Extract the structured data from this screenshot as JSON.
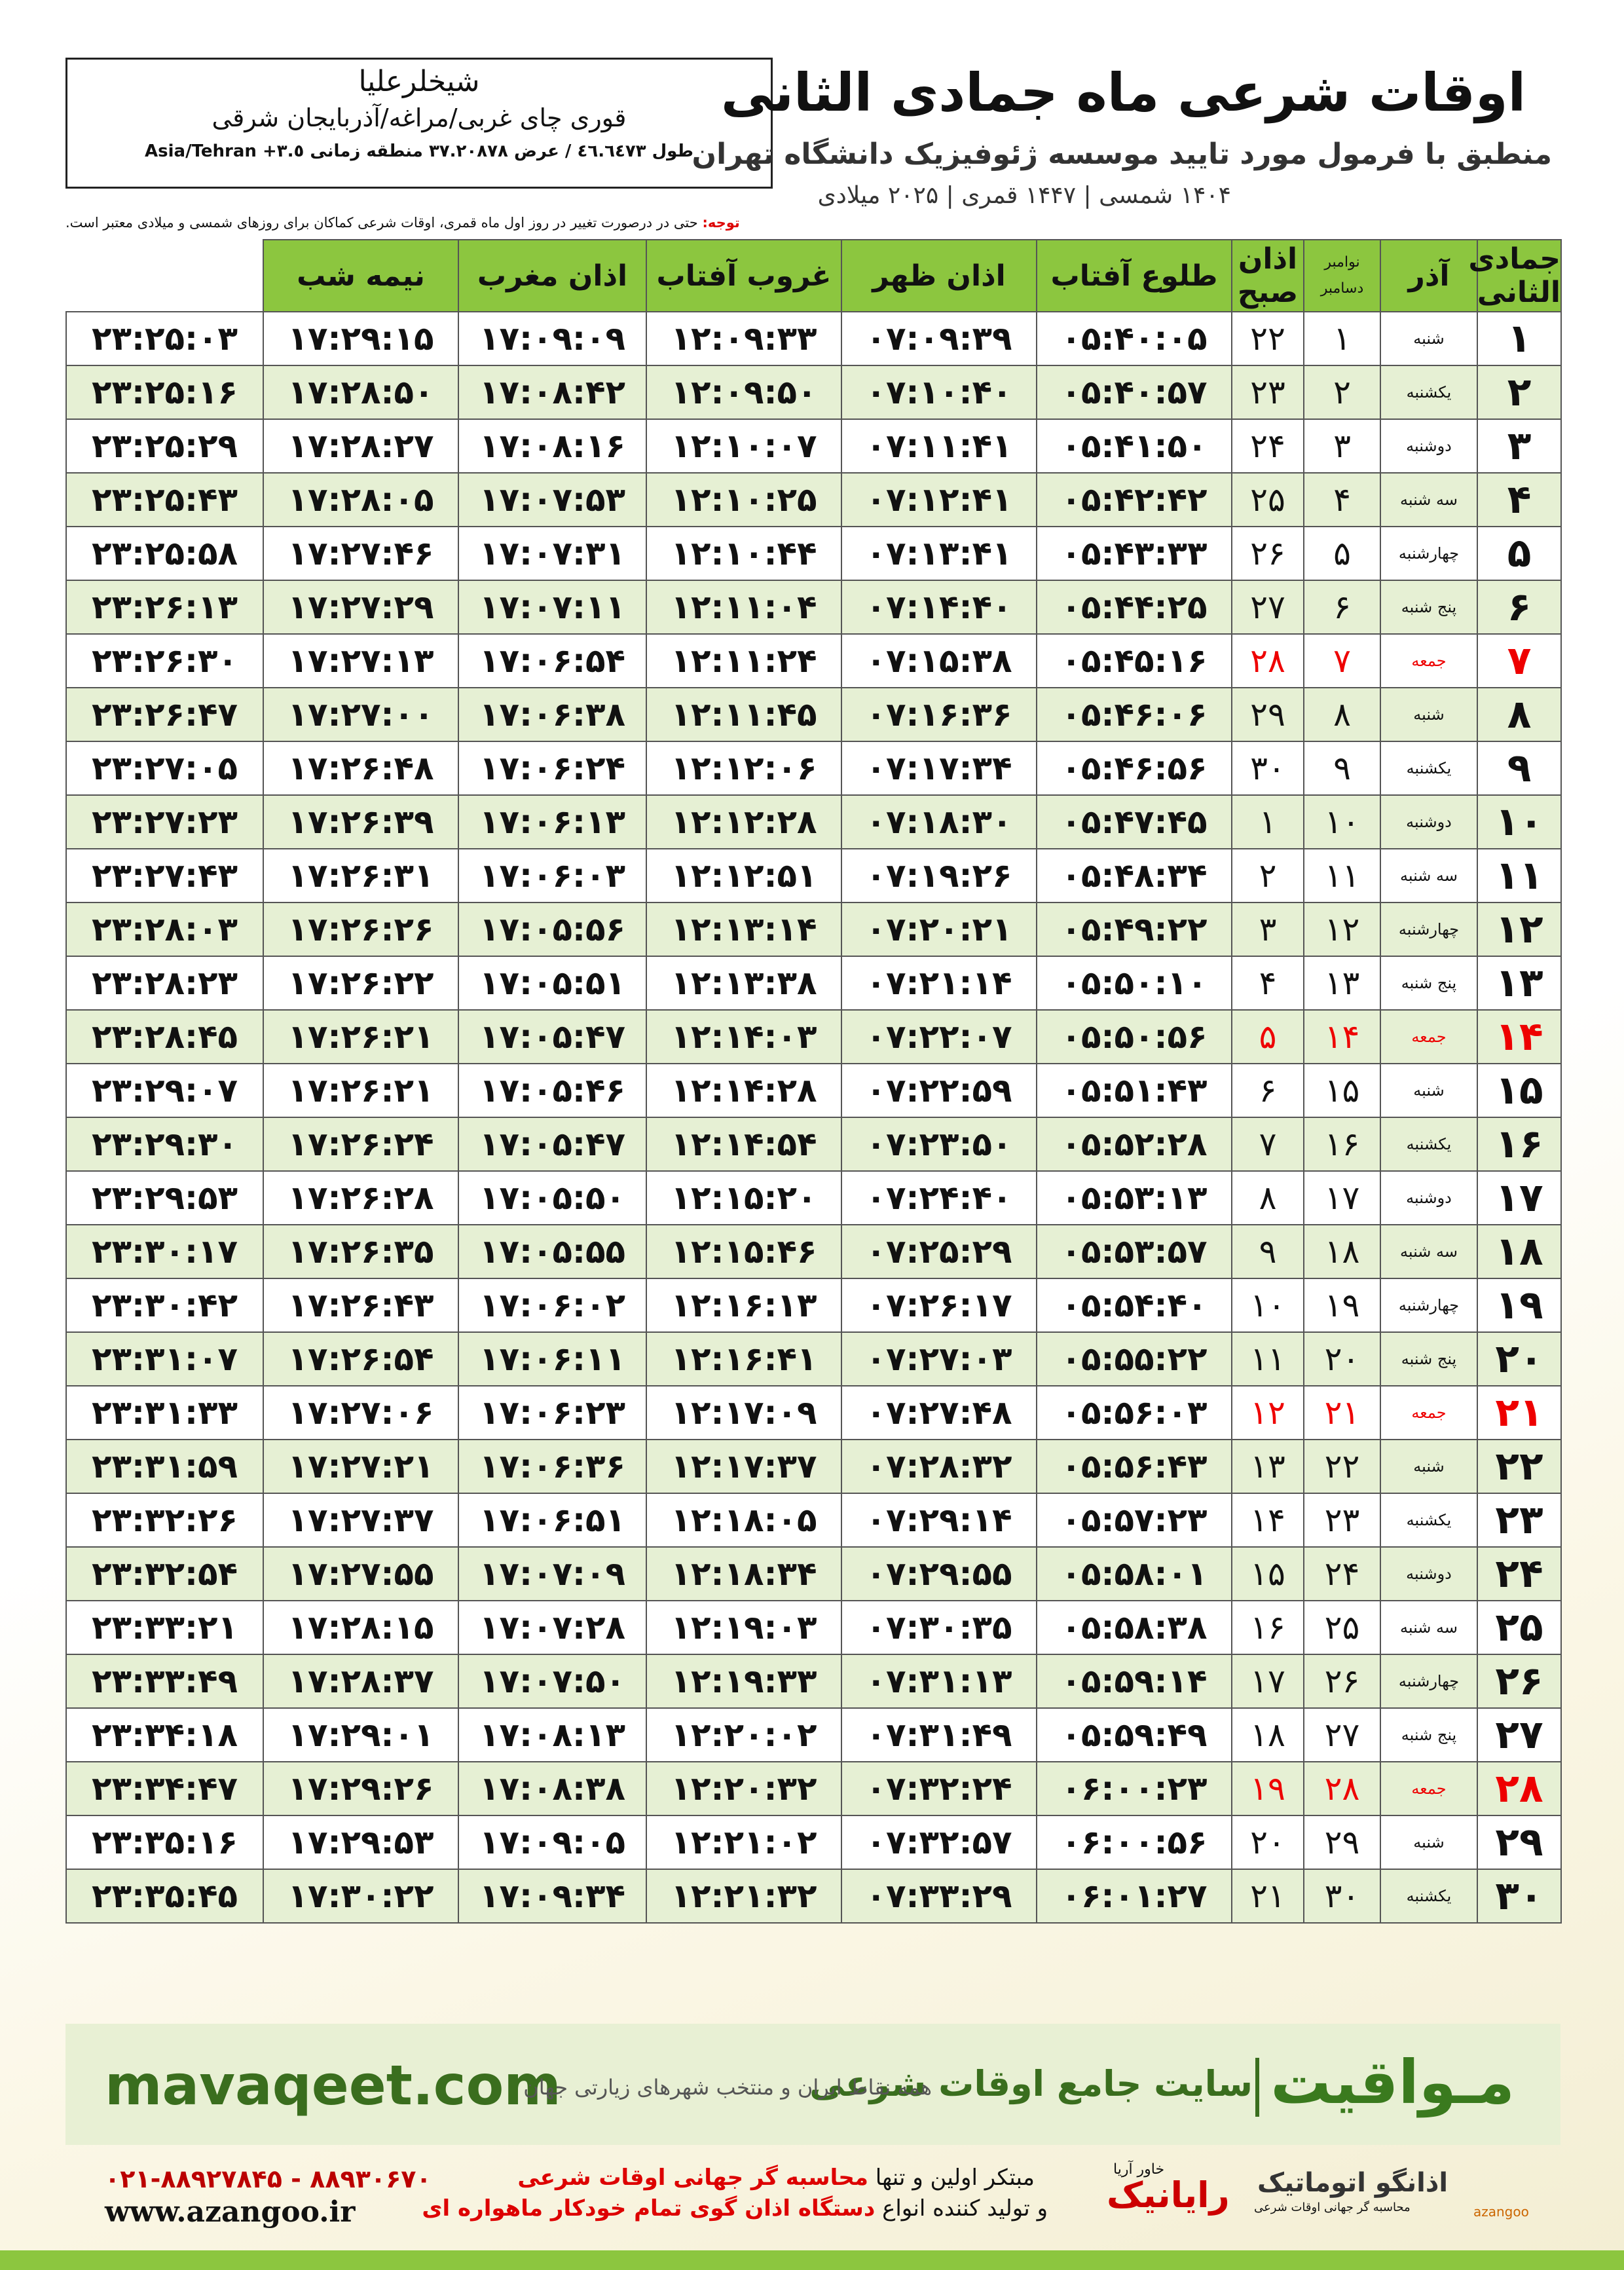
{
  "header": {
    "location": "شیخلرعلیا",
    "address": "قوری چای غربی/مراغه/آذربایجان شرقی",
    "coords": "طول ٤٦.٦٤٧٣ / عرض ٣٧.٢٠٨٧٨ منطقه زمانی ٣.٥+ Asia/Tehran",
    "title": "اوقات شرعی ماه جمادی الثانی",
    "subtitle": "منطبق با فرمول مورد تایید موسسه ژئوفیزیک دانشگاه تهران",
    "years": "۱۴۰۴ شمسی | ۱۴۴۷ قمری | ۲۰۲۵ میلادی"
  },
  "note": {
    "label": "توجه:",
    "text": "حتی در درصورت تغییر در روز اول ماه قمری، اوقات شرعی کماکان برای روزهای شمسی و میلادی معتبر است."
  },
  "table": {
    "columns": [
      "جمادی الثانی",
      "آذر",
      [
        "نوامبر",
        "دسامبر"
      ],
      "اذان صبح",
      "طلوع آفتاب",
      "اذان ظهر",
      "غروب آفتاب",
      "اذان مغرب",
      "نیمه شب"
    ],
    "rows": [
      [
        "۱",
        "شنبه",
        "۱",
        "۲۲",
        "۰۵:۴۰:۰۵",
        "۰۷:۰۹:۳۹",
        "۱۲:۰۹:۳۳",
        "۱۷:۰۹:۰۹",
        "۱۷:۲۹:۱۵",
        "۲۳:۲۵:۰۳"
      ],
      [
        "۲",
        "یکشنبه",
        "۲",
        "۲۳",
        "۰۵:۴۰:۵۷",
        "۰۷:۱۰:۴۰",
        "۱۲:۰۹:۵۰",
        "۱۷:۰۸:۴۲",
        "۱۷:۲۸:۵۰",
        "۲۳:۲۵:۱۶"
      ],
      [
        "۳",
        "دوشنبه",
        "۳",
        "۲۴",
        "۰۵:۴۱:۵۰",
        "۰۷:۱۱:۴۱",
        "۱۲:۱۰:۰۷",
        "۱۷:۰۸:۱۶",
        "۱۷:۲۸:۲۷",
        "۲۳:۲۵:۲۹"
      ],
      [
        "۴",
        "سه شنبه",
        "۴",
        "۲۵",
        "۰۵:۴۲:۴۲",
        "۰۷:۱۲:۴۱",
        "۱۲:۱۰:۲۵",
        "۱۷:۰۷:۵۳",
        "۱۷:۲۸:۰۵",
        "۲۳:۲۵:۴۳"
      ],
      [
        "۵",
        "چهارشنبه",
        "۵",
        "۲۶",
        "۰۵:۴۳:۳۳",
        "۰۷:۱۳:۴۱",
        "۱۲:۱۰:۴۴",
        "۱۷:۰۷:۳۱",
        "۱۷:۲۷:۴۶",
        "۲۳:۲۵:۵۸"
      ],
      [
        "۶",
        "پنج شنبه",
        "۶",
        "۲۷",
        "۰۵:۴۴:۲۵",
        "۰۷:۱۴:۴۰",
        "۱۲:۱۱:۰۴",
        "۱۷:۰۷:۱۱",
        "۱۷:۲۷:۲۹",
        "۲۳:۲۶:۱۳"
      ],
      [
        "۷",
        "جمعه",
        "۷",
        "۲۸",
        "۰۵:۴۵:۱۶",
        "۰۷:۱۵:۳۸",
        "۱۲:۱۱:۲۴",
        "۱۷:۰۶:۵۴",
        "۱۷:۲۷:۱۳",
        "۲۳:۲۶:۳۰"
      ],
      [
        "۸",
        "شنبه",
        "۸",
        "۲۹",
        "۰۵:۴۶:۰۶",
        "۰۷:۱۶:۳۶",
        "۱۲:۱۱:۴۵",
        "۱۷:۰۶:۳۸",
        "۱۷:۲۷:۰۰",
        "۲۳:۲۶:۴۷"
      ],
      [
        "۹",
        "یکشنبه",
        "۹",
        "۳۰",
        "۰۵:۴۶:۵۶",
        "۰۷:۱۷:۳۴",
        "۱۲:۱۲:۰۶",
        "۱۷:۰۶:۲۴",
        "۱۷:۲۶:۴۸",
        "۲۳:۲۷:۰۵"
      ],
      [
        "۱۰",
        "دوشنبه",
        "۱۰",
        "۱",
        "۰۵:۴۷:۴۵",
        "۰۷:۱۸:۳۰",
        "۱۲:۱۲:۲۸",
        "۱۷:۰۶:۱۳",
        "۱۷:۲۶:۳۹",
        "۲۳:۲۷:۲۳"
      ],
      [
        "۱۱",
        "سه شنبه",
        "۱۱",
        "۲",
        "۰۵:۴۸:۳۴",
        "۰۷:۱۹:۲۶",
        "۱۲:۱۲:۵۱",
        "۱۷:۰۶:۰۳",
        "۱۷:۲۶:۳۱",
        "۲۳:۲۷:۴۳"
      ],
      [
        "۱۲",
        "چهارشنبه",
        "۱۲",
        "۳",
        "۰۵:۴۹:۲۲",
        "۰۷:۲۰:۲۱",
        "۱۲:۱۳:۱۴",
        "۱۷:۰۵:۵۶",
        "۱۷:۲۶:۲۶",
        "۲۳:۲۸:۰۳"
      ],
      [
        "۱۳",
        "پنج شنبه",
        "۱۳",
        "۴",
        "۰۵:۵۰:۱۰",
        "۰۷:۲۱:۱۴",
        "۱۲:۱۳:۳۸",
        "۱۷:۰۵:۵۱",
        "۱۷:۲۶:۲۲",
        "۲۳:۲۸:۲۳"
      ],
      [
        "۱۴",
        "جمعه",
        "۱۴",
        "۵",
        "۰۵:۵۰:۵۶",
        "۰۷:۲۲:۰۷",
        "۱۲:۱۴:۰۳",
        "۱۷:۰۵:۴۷",
        "۱۷:۲۶:۲۱",
        "۲۳:۲۸:۴۵"
      ],
      [
        "۱۵",
        "شنبه",
        "۱۵",
        "۶",
        "۰۵:۵۱:۴۳",
        "۰۷:۲۲:۵۹",
        "۱۲:۱۴:۲۸",
        "۱۷:۰۵:۴۶",
        "۱۷:۲۶:۲۱",
        "۲۳:۲۹:۰۷"
      ],
      [
        "۱۶",
        "یکشنبه",
        "۱۶",
        "۷",
        "۰۵:۵۲:۲۸",
        "۰۷:۲۳:۵۰",
        "۱۲:۱۴:۵۴",
        "۱۷:۰۵:۴۷",
        "۱۷:۲۶:۲۴",
        "۲۳:۲۹:۳۰"
      ],
      [
        "۱۷",
        "دوشنبه",
        "۱۷",
        "۸",
        "۰۵:۵۳:۱۳",
        "۰۷:۲۴:۴۰",
        "۱۲:۱۵:۲۰",
        "۱۷:۰۵:۵۰",
        "۱۷:۲۶:۲۸",
        "۲۳:۲۹:۵۳"
      ],
      [
        "۱۸",
        "سه شنبه",
        "۱۸",
        "۹",
        "۰۵:۵۳:۵۷",
        "۰۷:۲۵:۲۹",
        "۱۲:۱۵:۴۶",
        "۱۷:۰۵:۵۵",
        "۱۷:۲۶:۳۵",
        "۲۳:۳۰:۱۷"
      ],
      [
        "۱۹",
        "چهارشنبه",
        "۱۹",
        "۱۰",
        "۰۵:۵۴:۴۰",
        "۰۷:۲۶:۱۷",
        "۱۲:۱۶:۱۳",
        "۱۷:۰۶:۰۲",
        "۱۷:۲۶:۴۳",
        "۲۳:۳۰:۴۲"
      ],
      [
        "۲۰",
        "پنج شنبه",
        "۲۰",
        "۱۱",
        "۰۵:۵۵:۲۲",
        "۰۷:۲۷:۰۳",
        "۱۲:۱۶:۴۱",
        "۱۷:۰۶:۱۱",
        "۱۷:۲۶:۵۴",
        "۲۳:۳۱:۰۷"
      ],
      [
        "۲۱",
        "جمعه",
        "۲۱",
        "۱۲",
        "۰۵:۵۶:۰۳",
        "۰۷:۲۷:۴۸",
        "۱۲:۱۷:۰۹",
        "۱۷:۰۶:۲۳",
        "۱۷:۲۷:۰۶",
        "۲۳:۳۱:۳۳"
      ],
      [
        "۲۲",
        "شنبه",
        "۲۲",
        "۱۳",
        "۰۵:۵۶:۴۳",
        "۰۷:۲۸:۳۲",
        "۱۲:۱۷:۳۷",
        "۱۷:۰۶:۳۶",
        "۱۷:۲۷:۲۱",
        "۲۳:۳۱:۵۹"
      ],
      [
        "۲۳",
        "یکشنبه",
        "۲۳",
        "۱۴",
        "۰۵:۵۷:۲۳",
        "۰۷:۲۹:۱۴",
        "۱۲:۱۸:۰۵",
        "۱۷:۰۶:۵۱",
        "۱۷:۲۷:۳۷",
        "۲۳:۳۲:۲۶"
      ],
      [
        "۲۴",
        "دوشنبه",
        "۲۴",
        "۱۵",
        "۰۵:۵۸:۰۱",
        "۰۷:۲۹:۵۵",
        "۱۲:۱۸:۳۴",
        "۱۷:۰۷:۰۹",
        "۱۷:۲۷:۵۵",
        "۲۳:۳۲:۵۴"
      ],
      [
        "۲۵",
        "سه شنبه",
        "۲۵",
        "۱۶",
        "۰۵:۵۸:۳۸",
        "۰۷:۳۰:۳۵",
        "۱۲:۱۹:۰۳",
        "۱۷:۰۷:۲۸",
        "۱۷:۲۸:۱۵",
        "۲۳:۳۳:۲۱"
      ],
      [
        "۲۶",
        "چهارشنبه",
        "۲۶",
        "۱۷",
        "۰۵:۵۹:۱۴",
        "۰۷:۳۱:۱۳",
        "۱۲:۱۹:۳۳",
        "۱۷:۰۷:۵۰",
        "۱۷:۲۸:۳۷",
        "۲۳:۳۳:۴۹"
      ],
      [
        "۲۷",
        "پنج شنبه",
        "۲۷",
        "۱۸",
        "۰۵:۵۹:۴۹",
        "۰۷:۳۱:۴۹",
        "۱۲:۲۰:۰۲",
        "۱۷:۰۸:۱۳",
        "۱۷:۲۹:۰۱",
        "۲۳:۳۴:۱۸"
      ],
      [
        "۲۸",
        "جمعه",
        "۲۸",
        "۱۹",
        "۰۶:۰۰:۲۳",
        "۰۷:۳۲:۲۴",
        "۱۲:۲۰:۳۲",
        "۱۷:۰۸:۳۸",
        "۱۷:۲۹:۲۶",
        "۲۳:۳۴:۴۷"
      ],
      [
        "۲۹",
        "شنبه",
        "۲۹",
        "۲۰",
        "۰۶:۰۰:۵۶",
        "۰۷:۳۲:۵۷",
        "۱۲:۲۱:۰۲",
        "۱۷:۰۹:۰۵",
        "۱۷:۲۹:۵۳",
        "۲۳:۳۵:۱۶"
      ],
      [
        "۳۰",
        "یکشنبه",
        "۳۰",
        "۲۱",
        "۰۶:۰۱:۲۷",
        "۰۷:۳۳:۲۹",
        "۱۲:۲۱:۳۲",
        "۱۷:۰۹:۳۴",
        "۱۷:۳۰:۲۲",
        "۲۳:۳۵:۴۵"
      ]
    ]
  },
  "banner": {
    "url": "mavaqeet.com",
    "brand": "مـواقیت",
    "slogan": "سایت جامع اوقات شرعی",
    "coverage": "همه نقاط ایران و منتخب شهرهای زیارتی جهان"
  },
  "footer": {
    "phone": "۰۲۱-۸۸۹۲۷۸۴۵ - ۸۸۹۳۰۶۷۰",
    "website": "www.azangoo.ir",
    "line1a": "مبتکر اولین و تنها",
    "line1b": "محاسبه گر جهانی اوقات شرعی",
    "line2a": "و تولید کننده انواع",
    "line2b": "دستگاه اذان گوی تمام خودکار ماهواره ای",
    "logo1": "رایانیک",
    "logo1sub": "خاور آریا",
    "logo2": "اذانگو اتوماتیک",
    "logo2sub": "محاسبه گر جهانی اوقات شرعی",
    "logo2en": "azangoo"
  }
}
